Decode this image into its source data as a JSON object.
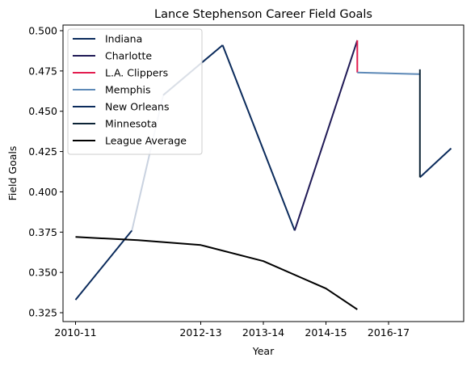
{
  "chart_data": {
    "type": "line",
    "title": "Lance Stephenson Career Field Goals",
    "xlabel": "Year",
    "ylabel": "Field Goals",
    "x_ticks": [
      {
        "label": "2010-11",
        "pos": 0
      },
      {
        "label": "2012-13",
        "pos": 2
      },
      {
        "label": "2013-14",
        "pos": 3
      },
      {
        "label": "2014-15",
        "pos": 4
      },
      {
        "label": "2016-17",
        "pos": 5
      }
    ],
    "xlim": [
      -0.2,
      6.2
    ],
    "y_ticks": [
      0.325,
      0.35,
      0.375,
      0.4,
      0.425,
      0.45,
      0.475,
      0.5
    ],
    "y_tick_labels": [
      "0.325",
      "0.350",
      "0.375",
      "0.400",
      "0.425",
      "0.450",
      "0.475",
      "0.500"
    ],
    "ylim": [
      0.3195,
      0.5035
    ],
    "grid": false,
    "legend_position": "top-left",
    "series": [
      {
        "name": "Indiana",
        "color": "#0b2b5c",
        "segments": [
          {
            "x": [
              0,
              0.9
            ],
            "y": [
              0.333,
              0.376
            ],
            "color": "#0b2b5c"
          },
          {
            "x": [
              0.9,
              1.4
            ],
            "y": [
              0.376,
              0.46
            ],
            "color": "#c9d2e0"
          },
          {
            "x": [
              1.4,
              2.35
            ],
            "y": [
              0.46,
              0.491
            ],
            "color": "#0b2b5c"
          },
          {
            "x": [
              2.35,
              3.5
            ],
            "y": [
              0.491,
              0.376
            ],
            "color": "#0b2b5c"
          }
        ]
      },
      {
        "name": "Charlotte",
        "color": "#201a56",
        "segments": [
          {
            "x": [
              3.5,
              4.5
            ],
            "y": [
              0.376,
              0.494
            ],
            "color": "#201a56"
          }
        ]
      },
      {
        "name": "L.A. Clippers",
        "color": "#e31c4f",
        "segments": [
          {
            "x": [
              4.5,
              4.5
            ],
            "y": [
              0.494,
              0.474
            ],
            "color": "#e31c4f"
          }
        ]
      },
      {
        "name": "Memphis",
        "color": "#5d89b7",
        "segments": [
          {
            "x": [
              4.5,
              5.5
            ],
            "y": [
              0.474,
              0.473
            ],
            "color": "#5d89b7"
          }
        ]
      },
      {
        "name": "New Orleans",
        "color": "#0b2b5c",
        "segments": [
          {
            "x": [
              5.5,
              6.0
            ],
            "y": [
              0.409,
              0.427
            ],
            "color": "#0b2b5c"
          }
        ]
      },
      {
        "name": "Minnesota",
        "color": "#0c2436",
        "segments": [
          {
            "x": [
              5.5,
              5.5
            ],
            "y": [
              0.476,
              0.409
            ],
            "color": "#0c2436"
          }
        ]
      },
      {
        "name": "League Average",
        "color": "#000000",
        "segments": [
          {
            "x": [
              0,
              1,
              2,
              3,
              4,
              4.5
            ],
            "y": [
              0.372,
              0.37,
              0.367,
              0.357,
              0.34,
              0.327
            ],
            "color": "#000000"
          }
        ]
      }
    ]
  }
}
